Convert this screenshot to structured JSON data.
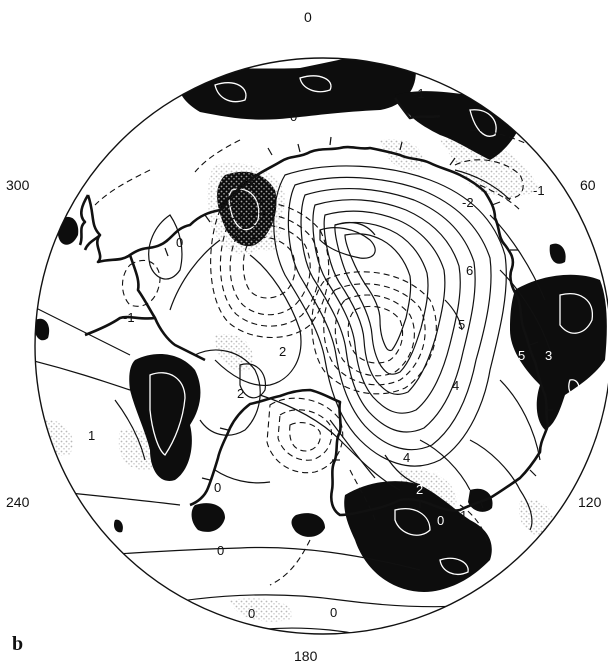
{
  "panel_label": "b",
  "longitude_labels": {
    "top": "0",
    "upper_right": "60",
    "lower_right": "120",
    "bottom": "180",
    "lower_left": "240",
    "upper_left": "300"
  },
  "contour_labels": [
    "0",
    "-1",
    "-1",
    "-1",
    "-2",
    "-1",
    "0",
    "6",
    "5",
    "5",
    "3",
    "4",
    "4",
    "2",
    "0",
    "2",
    "2",
    "1",
    "0",
    "0",
    "0",
    "0",
    "0",
    "1"
  ],
  "colors": {
    "land_fill": "#0d0d0d",
    "stipple": "#c8c8c8",
    "line": "#111111",
    "background": "#ffffff"
  }
}
